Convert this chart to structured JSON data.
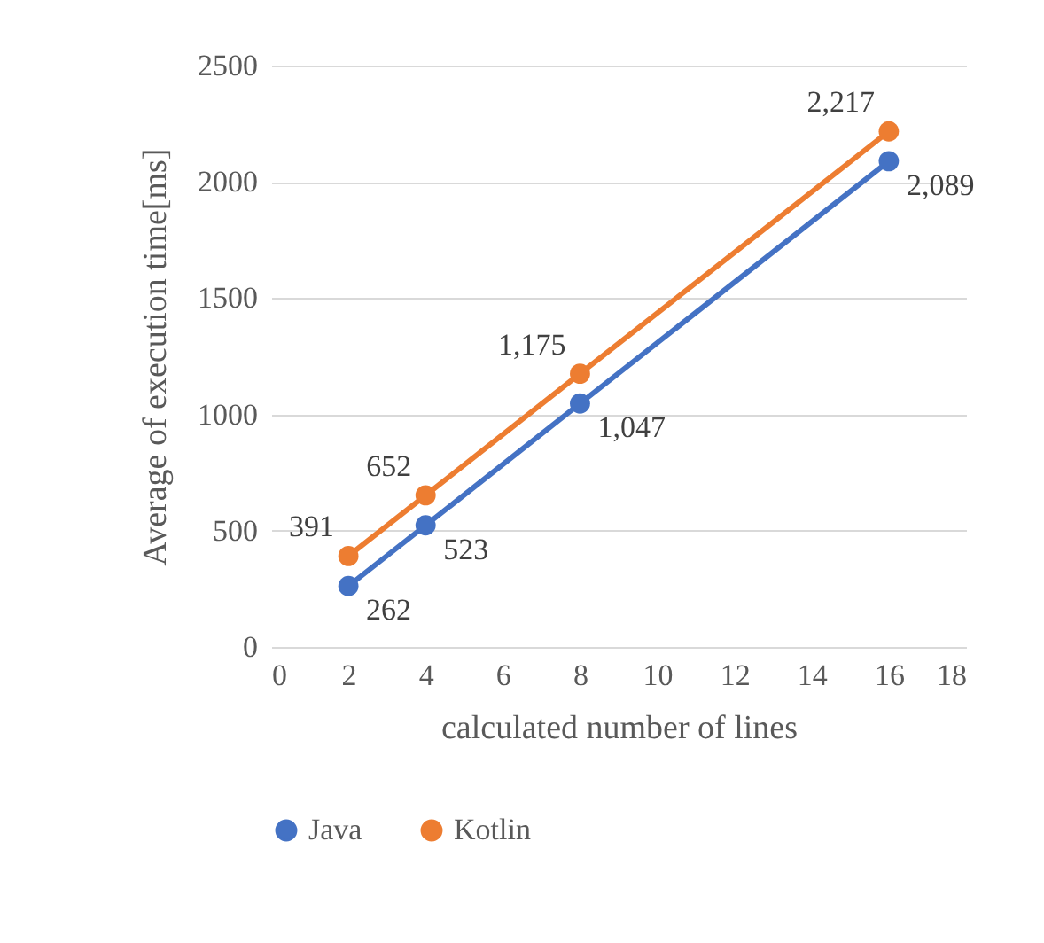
{
  "chart_data": {
    "type": "line",
    "xlabel": "calculated number of lines",
    "ylabel": "Average of execution time[ms]",
    "x": [
      2,
      4,
      8,
      16
    ],
    "series": [
      {
        "name": "Java",
        "color": "#4472c4",
        "values": [
          262,
          523,
          1047,
          2089
        ],
        "value_labels": [
          "262",
          "523",
          "1,047",
          "2,089"
        ]
      },
      {
        "name": "Kotlin",
        "color": "#ed7d31",
        "values": [
          391,
          652,
          1175,
          2217
        ],
        "value_labels": [
          "391",
          "652",
          "1,175",
          "2,217"
        ]
      }
    ],
    "xlim": [
      0,
      18
    ],
    "xticks": [
      0,
      2,
      4,
      6,
      8,
      10,
      12,
      14,
      16,
      18
    ],
    "ylim": [
      0,
      2500
    ],
    "yticks": [
      0,
      500,
      1000,
      1500,
      2000,
      2500
    ],
    "grid": "y",
    "legend": "bottom",
    "marker": "circle",
    "line_style": "solid"
  }
}
